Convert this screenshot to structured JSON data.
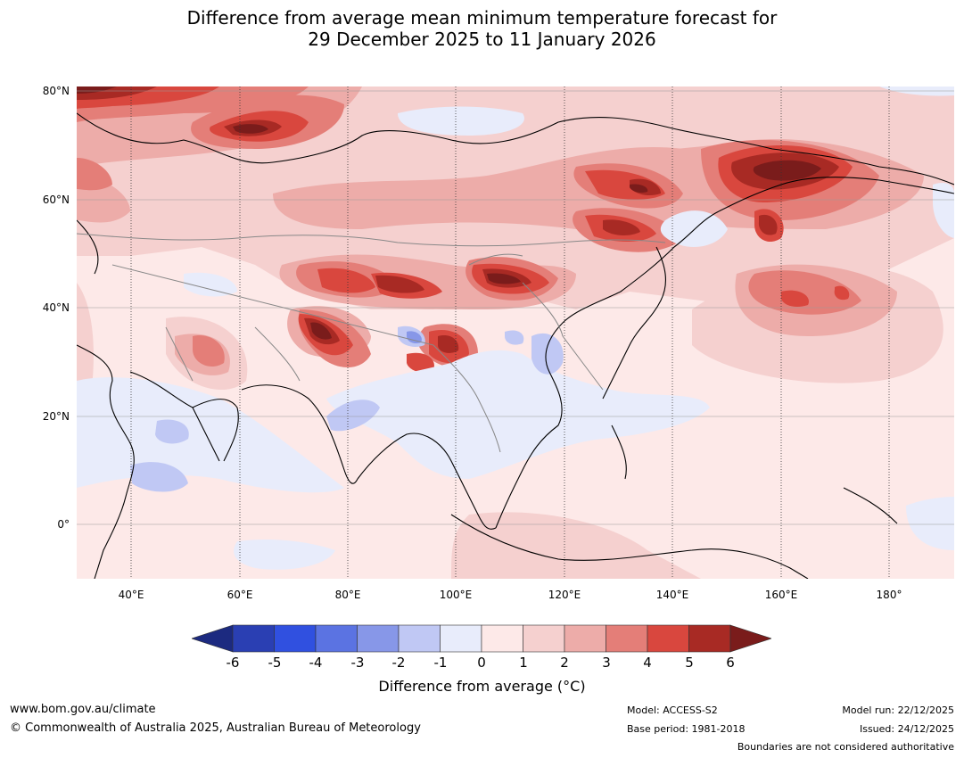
{
  "title": {
    "line1": "Difference from average mean minimum temperature forecast for",
    "line2": "29 December 2025 to 11 January 2026"
  },
  "map": {
    "region": "Asia and Western Pacific",
    "lat_labels": [
      "80°N",
      "60°N",
      "40°N",
      "20°N",
      "0°"
    ],
    "lon_labels": [
      "40°E",
      "60°E",
      "80°E",
      "100°E",
      "120°E",
      "140°E",
      "160°E",
      "180°"
    ]
  },
  "legend": {
    "ticks": [
      "-6",
      "-5",
      "-4",
      "-3",
      "-2",
      "-1",
      "0",
      "1",
      "2",
      "3",
      "4",
      "5",
      "6"
    ],
    "colors": [
      "#1c2a80",
      "#2a3fb3",
      "#3050e0",
      "#5b73e2",
      "#8797e8",
      "#c0c8f4",
      "#e8ecfb",
      "#fde9e8",
      "#f5d0cf",
      "#edaca9",
      "#e47e78",
      "#d9473e",
      "#a82a24",
      "#7a1c1b"
    ],
    "label": "Difference from average (°C)"
  },
  "footer": {
    "url": "www.bom.gov.au/climate",
    "copyright": "© Commonwealth of Australia 2025, Australian Bureau of Meteorology",
    "model": "Model: ACCESS-S2",
    "base_period": "Base period: 1981-2018",
    "model_run": "Model run: 22/12/2025",
    "issued": "Issued: 24/12/2025",
    "disclaimer": "Boundaries are not considered authoritative"
  }
}
